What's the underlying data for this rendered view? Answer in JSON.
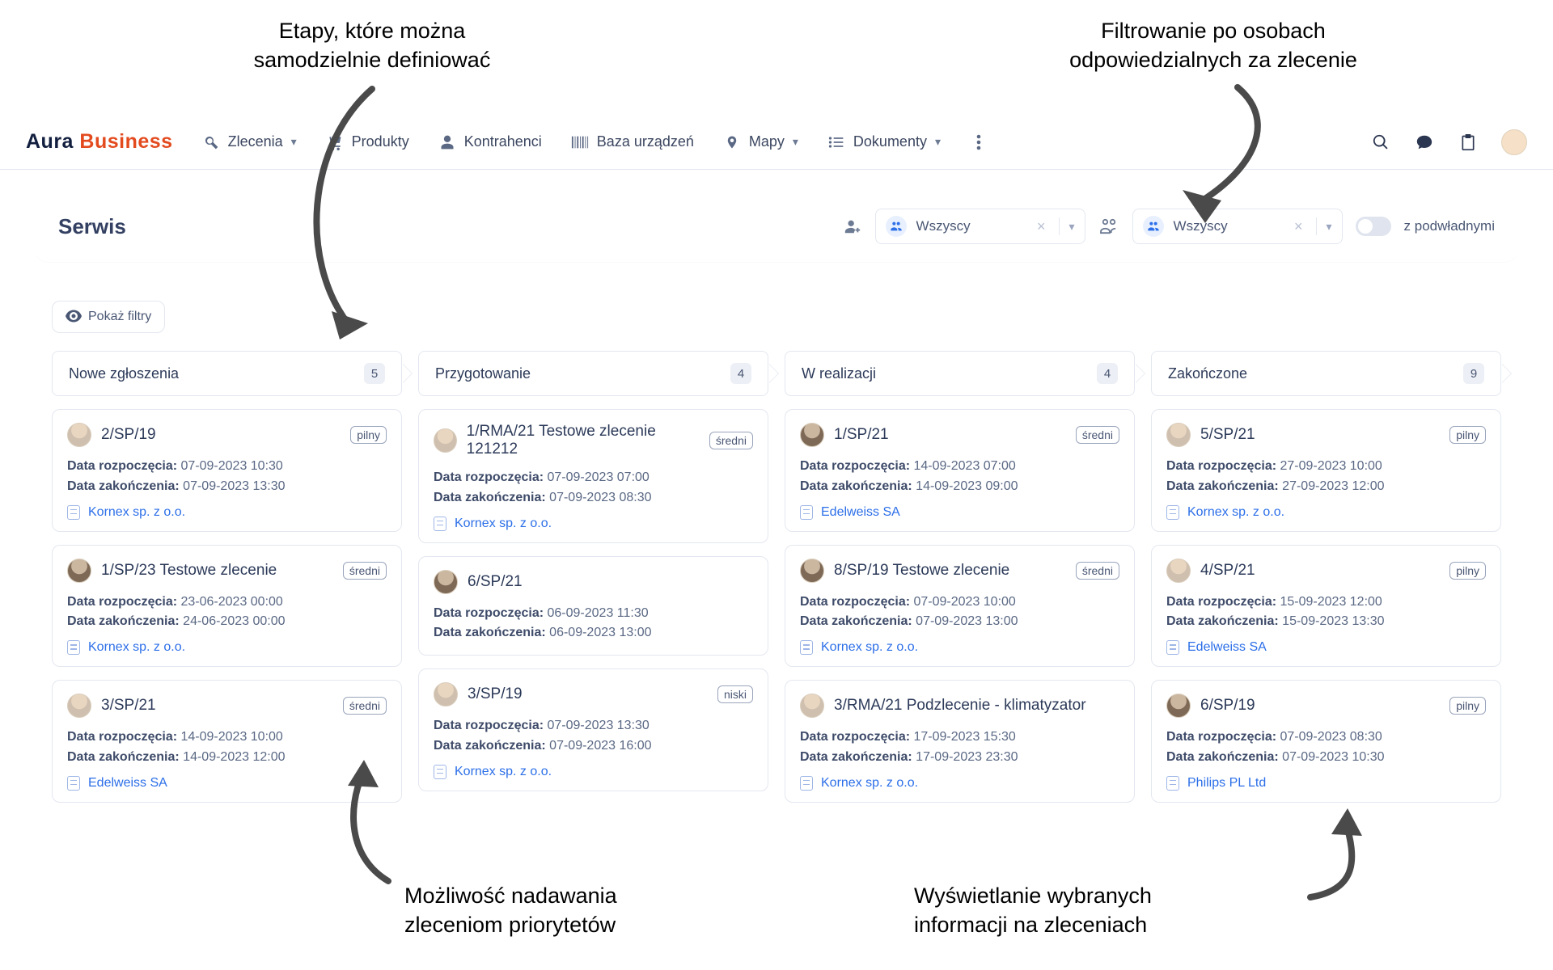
{
  "annotations": {
    "top_left": "Etapy, które można\nsamodzielnie definiować",
    "top_right": "Filtrowanie po osobach\nodpowiedzialnych za zlecenie",
    "bottom_left": "Możliwość nadawania\nzleceniom priorytetów",
    "bottom_right": "Wyświetlanie wybranych\ninformacji na zleceniach"
  },
  "logo": {
    "part1": "Aura",
    "part2": "Business"
  },
  "nav": {
    "orders": "Zlecenia",
    "products": "Produkty",
    "clients": "Kontrahenci",
    "devices": "Baza urządzeń",
    "maps": "Mapy",
    "documents": "Dokumenty"
  },
  "page_title_block": {
    "title": "Serwis",
    "select1": "Wszyscy",
    "select2": "Wszyscy",
    "toggle_label": "z podwładnymi"
  },
  "filters_button": "Pokaż filtry",
  "columns": [
    {
      "title": "Nowe zgłoszenia",
      "count": "5",
      "cards": [
        {
          "avatar": "a",
          "title": "2/SP/19",
          "priority": "pilny",
          "start_label": "Data rozpoczęcia:",
          "start": "07-09-2023 10:30",
          "end_label": "Data zakończenia:",
          "end": "07-09-2023 13:30",
          "company": "Kornex sp. z o.o."
        },
        {
          "avatar": "b",
          "title": "1/SP/23 Testowe zlecenie",
          "priority": "średni",
          "start_label": "Data rozpoczęcia:",
          "start": "23-06-2023 00:00",
          "end_label": "Data zakończenia:",
          "end": "24-06-2023 00:00",
          "company": "Kornex sp. z o.o."
        },
        {
          "avatar": "a",
          "title": "3/SP/21",
          "priority": "średni",
          "start_label": "Data rozpoczęcia:",
          "start": "14-09-2023 10:00",
          "end_label": "Data zakończenia:",
          "end": "14-09-2023 12:00",
          "company": "Edelweiss SA"
        }
      ]
    },
    {
      "title": "Przygotowanie",
      "count": "4",
      "cards": [
        {
          "avatar": "a",
          "title": "1/RMA/21 Testowe zlecenie 121212",
          "priority": "średni",
          "start_label": "Data rozpoczęcia:",
          "start": "07-09-2023 07:00",
          "end_label": "Data zakończenia:",
          "end": "07-09-2023 08:30",
          "company": "Kornex sp. z o.o."
        },
        {
          "avatar": "b",
          "title": "6/SP/21",
          "priority": "",
          "start_label": "Data rozpoczęcia:",
          "start": "06-09-2023 11:30",
          "end_label": "Data zakończenia:",
          "end": "06-09-2023 13:00",
          "company": ""
        },
        {
          "avatar": "a",
          "title": "3/SP/19",
          "priority": "niski",
          "start_label": "Data rozpoczęcia:",
          "start": "07-09-2023 13:30",
          "end_label": "Data zakończenia:",
          "end": "07-09-2023 16:00",
          "company": "Kornex sp. z o.o."
        }
      ]
    },
    {
      "title": "W realizacji",
      "count": "4",
      "cards": [
        {
          "avatar": "b",
          "title": "1/SP/21",
          "priority": "średni",
          "start_label": "Data rozpoczęcia:",
          "start": "14-09-2023 07:00",
          "end_label": "Data zakończenia:",
          "end": "14-09-2023 09:00",
          "company": "Edelweiss SA"
        },
        {
          "avatar": "b",
          "title": "8/SP/19 Testowe zlecenie",
          "priority": "średni",
          "start_label": "Data rozpoczęcia:",
          "start": "07-09-2023 10:00",
          "end_label": "Data zakończenia:",
          "end": "07-09-2023 13:00",
          "company": "Kornex sp. z o.o."
        },
        {
          "avatar": "a",
          "title": "3/RMA/21 Podzlecenie - klimatyzator",
          "priority": "",
          "start_label": "Data rozpoczęcia:",
          "start": "17-09-2023 15:30",
          "end_label": "Data zakończenia:",
          "end": "17-09-2023 23:30",
          "company": "Kornex sp. z o.o."
        }
      ]
    },
    {
      "title": "Zakończone",
      "count": "9",
      "cards": [
        {
          "avatar": "a",
          "title": "5/SP/21",
          "priority": "pilny",
          "start_label": "Data rozpoczęcia:",
          "start": "27-09-2023 10:00",
          "end_label": "Data zakończenia:",
          "end": "27-09-2023 12:00",
          "company": "Kornex sp. z o.o."
        },
        {
          "avatar": "a",
          "title": "4/SP/21",
          "priority": "pilny",
          "start_label": "Data rozpoczęcia:",
          "start": "15-09-2023 12:00",
          "end_label": "Data zakończenia:",
          "end": "15-09-2023 13:30",
          "company": "Edelweiss SA"
        },
        {
          "avatar": "b",
          "title": "6/SP/19",
          "priority": "pilny",
          "start_label": "Data rozpoczęcia:",
          "start": "07-09-2023 08:30",
          "end_label": "Data zakończenia:",
          "end": "07-09-2023 10:30",
          "company": "Philips PL Ltd"
        }
      ]
    }
  ]
}
